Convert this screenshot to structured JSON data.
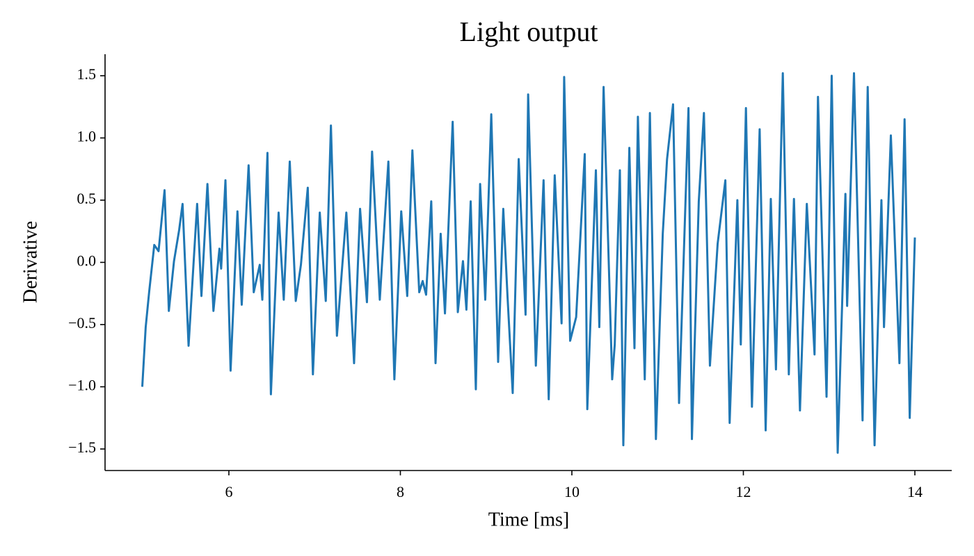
{
  "chart_data": {
    "type": "line",
    "title": "Light output",
    "x_label": "Time [ms]",
    "y_label": "Derivative",
    "xlim": [
      4.556,
      14.43
    ],
    "ylim": [
      -1.673,
      1.673
    ],
    "xticks": [
      6,
      8,
      10,
      12,
      14
    ],
    "yticks": [
      {
        "value": -1.5,
        "label": "−1.5"
      },
      {
        "value": -1.0,
        "label": "−1.0"
      },
      {
        "value": -0.5,
        "label": "−0.5"
      },
      {
        "value": 0,
        "label": "0.0"
      },
      {
        "value": 0.5,
        "label": "0.5"
      },
      {
        "value": 1.0,
        "label": "1.0"
      },
      {
        "value": 1.5,
        "label": "1.5"
      }
    ],
    "grid": false,
    "x": [
      4.99,
      5.03,
      5.07,
      5.13,
      5.18,
      5.25,
      5.3,
      5.36,
      5.42,
      5.46,
      5.53,
      5.63,
      5.68,
      5.75,
      5.82,
      5.89,
      5.91,
      5.96,
      6.02,
      6.1,
      6.15,
      6.23,
      6.29,
      6.36,
      6.39,
      6.45,
      6.49,
      6.58,
      6.64,
      6.71,
      6.78,
      6.84,
      6.92,
      6.98,
      7.06,
      7.13,
      7.19,
      7.26,
      7.37,
      7.46,
      7.53,
      7.61,
      7.67,
      7.76,
      7.86,
      7.93,
      8.01,
      8.08,
      8.14,
      8.22,
      8.26,
      8.3,
      8.36,
      8.41,
      8.47,
      8.52,
      8.61,
      8.67,
      8.73,
      8.77,
      8.82,
      8.88,
      8.93,
      8.99,
      9.06,
      9.14,
      9.2,
      9.25,
      9.31,
      9.38,
      9.46,
      9.49,
      9.58,
      9.67,
      9.73,
      9.8,
      9.88,
      9.91,
      9.98,
      10.05,
      10.15,
      10.18,
      10.28,
      10.32,
      10.37,
      10.47,
      10.5,
      10.56,
      10.6,
      10.67,
      10.73,
      10.77,
      10.85,
      10.91,
      10.98,
      11.06,
      11.11,
      11.18,
      11.25,
      11.36,
      11.4,
      11.48,
      11.54,
      11.61,
      11.7,
      11.79,
      11.84,
      11.93,
      11.97,
      12.03,
      12.1,
      12.19,
      12.26,
      12.32,
      12.38,
      12.46,
      12.53,
      12.59,
      12.66,
      12.74,
      12.83,
      12.87,
      12.97,
      13.03,
      13.1,
      13.19,
      13.21,
      13.29,
      13.39,
      13.45,
      13.53,
      13.61,
      13.64,
      13.72,
      13.82,
      13.88,
      13.94,
      14.0
    ],
    "series": [
      {
        "name": "Derivative",
        "color": "#1f77b4",
        "values": [
          -1.0,
          -0.52,
          -0.24,
          0.14,
          0.09,
          0.58,
          -0.39,
          0.01,
          0.26,
          0.47,
          -0.67,
          0.47,
          -0.27,
          0.63,
          -0.39,
          0.11,
          -0.05,
          0.66,
          -0.87,
          0.41,
          -0.34,
          0.78,
          -0.24,
          -0.02,
          -0.3,
          0.88,
          -1.06,
          0.4,
          -0.3,
          0.81,
          -0.31,
          -0.02,
          0.6,
          -0.9,
          0.4,
          -0.31,
          1.1,
          -0.59,
          0.4,
          -0.81,
          0.43,
          -0.32,
          0.89,
          -0.3,
          0.81,
          -0.94,
          0.41,
          -0.27,
          0.9,
          -0.24,
          -0.15,
          -0.26,
          0.49,
          -0.81,
          0.23,
          -0.41,
          1.13,
          -0.4,
          0.01,
          -0.38,
          0.49,
          -1.02,
          0.63,
          -0.3,
          1.19,
          -0.8,
          0.43,
          -0.28,
          -1.05,
          0.83,
          -0.42,
          1.35,
          -0.83,
          0.66,
          -1.1,
          0.7,
          -0.49,
          1.49,
          -0.63,
          -0.44,
          0.87,
          -1.18,
          0.74,
          -0.52,
          1.41,
          -0.94,
          -0.66,
          0.74,
          -1.47,
          0.92,
          -0.69,
          1.17,
          -0.94,
          1.2,
          -1.42,
          0.23,
          0.83,
          1.27,
          -1.13,
          1.24,
          -1.42,
          0.49,
          1.2,
          -0.83,
          0.15,
          0.66,
          -1.29,
          0.5,
          -0.66,
          1.24,
          -1.16,
          1.07,
          -1.35,
          0.51,
          -0.86,
          1.52,
          -0.9,
          0.51,
          -1.19,
          0.47,
          -0.74,
          1.33,
          -1.08,
          1.5,
          -1.53,
          0.55,
          -0.35,
          1.52,
          -1.27,
          1.41,
          -1.47,
          0.5,
          -0.52,
          1.02,
          -0.81,
          1.15,
          -1.25,
          0.2
        ]
      }
    ]
  }
}
